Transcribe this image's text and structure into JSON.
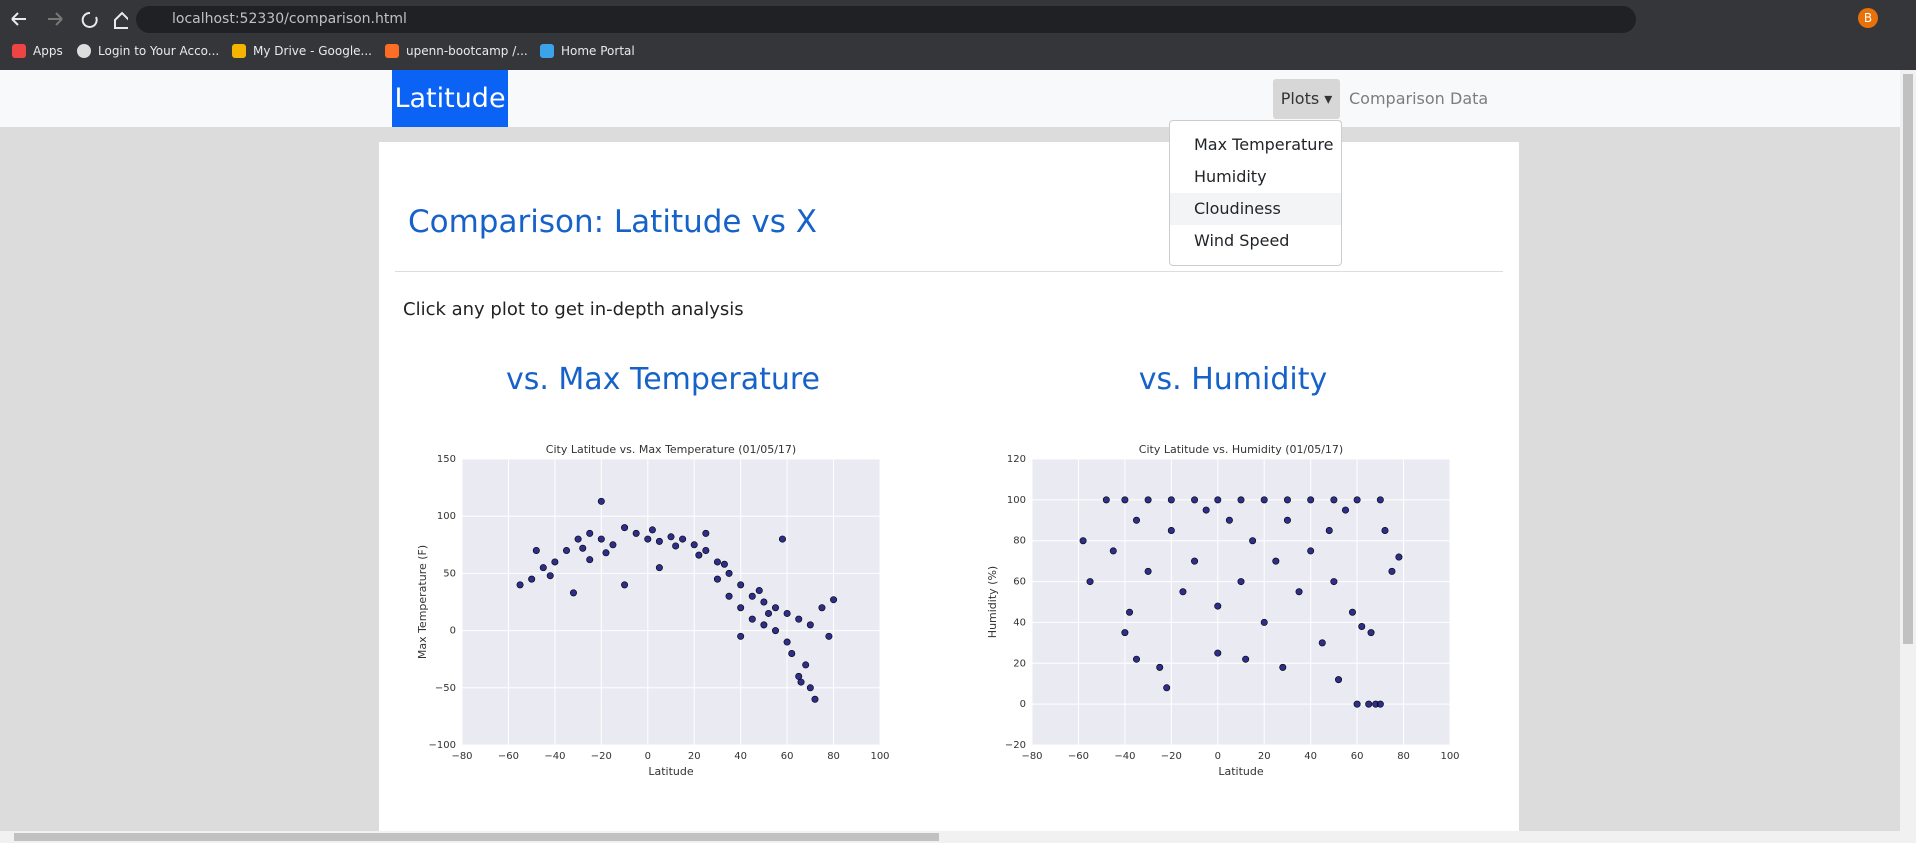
{
  "browser": {
    "url": "localhost:52330/comparison.html",
    "profile": "B",
    "bookmarks": [
      "Apps",
      "Login to Your Acco...",
      "My Drive - Google...",
      "upenn-bootcamp /...",
      "Home Portal"
    ]
  },
  "navbar": {
    "brand": "Latitude",
    "links": [
      "Plots",
      "Comparison",
      "Data"
    ],
    "dropdown": [
      "Max Temperature",
      "Humidity",
      "Cloudiness",
      "Wind Speed"
    ]
  },
  "page": {
    "title": "Comparison: Latitude vs X",
    "subtitle": "Click any plot to get in-depth analysis",
    "section_titles": [
      "vs. Max Temperature",
      "vs. Humidity"
    ]
  },
  "chart_data": [
    {
      "type": "scatter",
      "title": "City Latitude vs. Max Temperature (01/05/17)",
      "xlabel": "Latitude",
      "ylabel": "Max Temperature (F)",
      "color": "#1a1a7e",
      "grid": true,
      "xlim": [
        -80,
        100
      ],
      "xticks": [
        {
          "value": -80,
          "label": "−80"
        },
        {
          "value": -60,
          "label": "−60"
        },
        {
          "value": -40,
          "label": "−40"
        },
        {
          "value": -20,
          "label": "−20"
        },
        0,
        20,
        40,
        60,
        80,
        100
      ],
      "ylim": [
        -100,
        150
      ],
      "yticks": [
        {
          "value": -100,
          "label": "−100"
        },
        {
          "value": -50,
          "label": "−50"
        },
        0,
        50,
        100,
        150
      ],
      "x": [
        -55,
        -50,
        -45,
        -40,
        -35,
        -30,
        -25,
        -20,
        -20,
        -15,
        -10,
        -5,
        0,
        5,
        10,
        15,
        20,
        25,
        30,
        30,
        35,
        35,
        40,
        40,
        45,
        45,
        50,
        50,
        55,
        55,
        60,
        60,
        62,
        65,
        65,
        68,
        70,
        70,
        72,
        75,
        78,
        80,
        -32,
        -10,
        5,
        -48,
        40,
        58,
        -25,
        25,
        -28,
        -18,
        12,
        22,
        33,
        48,
        52,
        66,
        -42,
        2
      ],
      "values": [
        40,
        45,
        55,
        60,
        70,
        80,
        85,
        80,
        113,
        75,
        90,
        85,
        80,
        78,
        82,
        80,
        75,
        70,
        60,
        45,
        50,
        30,
        40,
        20,
        30,
        10,
        25,
        5,
        20,
        0,
        -10,
        15,
        -20,
        -40,
        10,
        -30,
        -50,
        5,
        -60,
        20,
        -5,
        27,
        33,
        40,
        55,
        70,
        -5,
        80,
        62,
        85,
        72,
        68,
        74,
        66,
        58,
        35,
        15,
        -45,
        48,
        88
      ]
    },
    {
      "type": "scatter",
      "title": "City Latitude vs. Humidity (01/05/17)",
      "xlabel": "Latitude",
      "ylabel": "Humidity (%)",
      "color": "#1a1a7e",
      "grid": true,
      "xlim": [
        -80,
        100
      ],
      "xticks": [
        {
          "value": -80,
          "label": "−80"
        },
        {
          "value": -60,
          "label": "−60"
        },
        {
          "value": -40,
          "label": "−40"
        },
        {
          "value": -20,
          "label": "−20"
        },
        0,
        20,
        40,
        60,
        80,
        100
      ],
      "ylim": [
        -20,
        120
      ],
      "yticks": [
        {
          "value": -20,
          "label": "−20"
        },
        0,
        20,
        40,
        60,
        80,
        100,
        120
      ],
      "x": [
        -48,
        -40,
        -30,
        -20,
        -10,
        0,
        10,
        20,
        30,
        40,
        50,
        60,
        70,
        -58,
        -55,
        -45,
        -40,
        -35,
        -35,
        -30,
        -25,
        -22,
        -20,
        -15,
        -10,
        -5,
        0,
        0,
        5,
        10,
        12,
        15,
        20,
        25,
        28,
        30,
        35,
        40,
        45,
        48,
        50,
        55,
        58,
        60,
        62,
        65,
        68,
        70,
        72,
        75,
        78,
        66,
        -38,
        52
      ],
      "values": [
        100,
        100,
        100,
        100,
        100,
        100,
        100,
        100,
        100,
        100,
        100,
        100,
        100,
        80,
        60,
        75,
        35,
        22,
        90,
        65,
        18,
        8,
        85,
        55,
        70,
        95,
        48,
        25,
        90,
        60,
        22,
        80,
        40,
        70,
        18,
        90,
        55,
        75,
        30,
        85,
        60,
        95,
        45,
        0,
        38,
        0,
        0,
        0,
        85,
        65,
        72,
        35,
        45,
        12
      ]
    }
  ]
}
